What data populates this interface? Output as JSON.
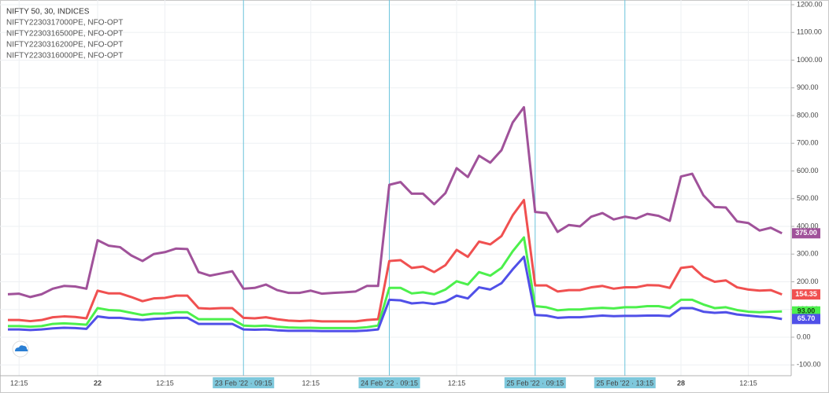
{
  "chart_data": {
    "type": "line",
    "title": "NIFTY 50, 30, INDICES",
    "categories": [
      null,
      "12:15",
      null,
      null,
      null,
      null,
      null,
      null,
      "22",
      null,
      null,
      null,
      null,
      null,
      "12:15",
      null,
      null,
      null,
      null,
      null,
      null,
      "23 Feb '22 · 09:15",
      null,
      null,
      null,
      null,
      null,
      "12:15",
      null,
      null,
      null,
      null,
      null,
      null,
      "24 Feb '22 · 09:15",
      null,
      null,
      null,
      null,
      null,
      "12:15",
      null,
      null,
      null,
      null,
      null,
      null,
      "25 Feb '22 · 09:15",
      null,
      null,
      null,
      null,
      null,
      null,
      null,
      "25 Feb '22 · 13:15",
      null,
      null,
      null,
      null,
      "28",
      null,
      null,
      null,
      null,
      null,
      "12:15",
      null,
      null,
      null
    ],
    "series": [
      {
        "name": "NIFTY2230317000PE, NFO-OPT",
        "color": "#a0529a",
        "value_label": "375.00",
        "values": [
          155,
          157,
          145,
          155,
          175,
          185,
          183,
          175,
          350,
          330,
          325,
          295,
          275,
          300,
          307,
          320,
          318,
          235,
          222,
          230,
          238,
          175,
          178,
          190,
          170,
          160,
          160,
          168,
          157,
          160,
          162,
          165,
          185,
          185,
          550,
          560,
          518,
          518,
          480,
          520,
          610,
          578,
          655,
          630,
          675,
          775,
          830,
          452,
          448,
          380,
          405,
          400,
          435,
          448,
          425,
          435,
          428,
          445,
          438,
          420,
          580,
          590,
          512,
          470,
          468,
          418,
          412,
          385,
          395,
          375
        ]
      },
      {
        "name": "NIFTY2230316500PE, NFO-OPT",
        "color": "#f05050",
        "value_label": "154.35",
        "values": [
          62,
          62,
          58,
          62,
          72,
          75,
          73,
          68,
          168,
          158,
          158,
          145,
          130,
          140,
          142,
          150,
          150,
          105,
          103,
          105,
          105,
          70,
          68,
          72,
          65,
          60,
          58,
          60,
          57,
          57,
          57,
          57,
          62,
          65,
          275,
          278,
          250,
          255,
          235,
          260,
          315,
          290,
          345,
          335,
          365,
          440,
          495,
          187,
          187,
          165,
          170,
          170,
          180,
          185,
          175,
          180,
          180,
          188,
          187,
          178,
          250,
          255,
          218,
          200,
          205,
          180,
          172,
          168,
          170,
          154.35
        ]
      },
      {
        "name": "NIFTY2230316200PE, NFO-OPT",
        "color": "#4cf04c",
        "value_label": "93.00",
        "values": [
          40,
          40,
          38,
          40,
          48,
          50,
          48,
          45,
          105,
          98,
          96,
          88,
          80,
          85,
          85,
          90,
          90,
          65,
          65,
          65,
          65,
          42,
          40,
          42,
          38,
          35,
          34,
          34,
          33,
          33,
          33,
          33,
          36,
          42,
          178,
          178,
          158,
          162,
          155,
          172,
          202,
          190,
          235,
          222,
          250,
          310,
          360,
          112,
          108,
          97,
          100,
          100,
          104,
          106,
          104,
          108,
          108,
          112,
          112,
          105,
          135,
          135,
          118,
          105,
          108,
          98,
          92,
          90,
          92,
          93
        ]
      },
      {
        "name": "NIFTY2230316000PE, NFO-OPT",
        "color": "#5050e8",
        "value_label": "65.70",
        "values": [
          28,
          28,
          26,
          28,
          32,
          34,
          33,
          30,
          75,
          70,
          70,
          65,
          62,
          66,
          68,
          70,
          70,
          48,
          48,
          48,
          48,
          28,
          27,
          28,
          25,
          23,
          23,
          23,
          22,
          22,
          22,
          22,
          24,
          28,
          135,
          133,
          122,
          125,
          120,
          128,
          150,
          140,
          180,
          172,
          195,
          245,
          290,
          80,
          78,
          70,
          72,
          72,
          75,
          78,
          76,
          77,
          77,
          78,
          78,
          76,
          105,
          105,
          92,
          88,
          90,
          82,
          78,
          74,
          72,
          65.7
        ]
      }
    ],
    "ylim": [
      -139,
      1217
    ],
    "yticks": [
      {
        "value": -100,
        "label": "-100.00"
      },
      {
        "value": 0,
        "label": "0.00"
      },
      {
        "value": 100,
        "label": "100.00"
      },
      {
        "value": 200,
        "label": "200.00"
      },
      {
        "value": 300,
        "label": "300.00"
      },
      {
        "value": 400,
        "label": "400.00"
      },
      {
        "value": 500,
        "label": "500.00"
      },
      {
        "value": 600,
        "label": "600.00"
      },
      {
        "value": 700,
        "label": "700.00"
      },
      {
        "value": 800,
        "label": "800.00"
      },
      {
        "value": 900,
        "label": "900.00"
      },
      {
        "value": 1000,
        "label": "1000.00"
      },
      {
        "value": 1100,
        "label": "1100.00"
      },
      {
        "value": 1200,
        "label": "1200.00"
      }
    ],
    "grid": true
  }
}
